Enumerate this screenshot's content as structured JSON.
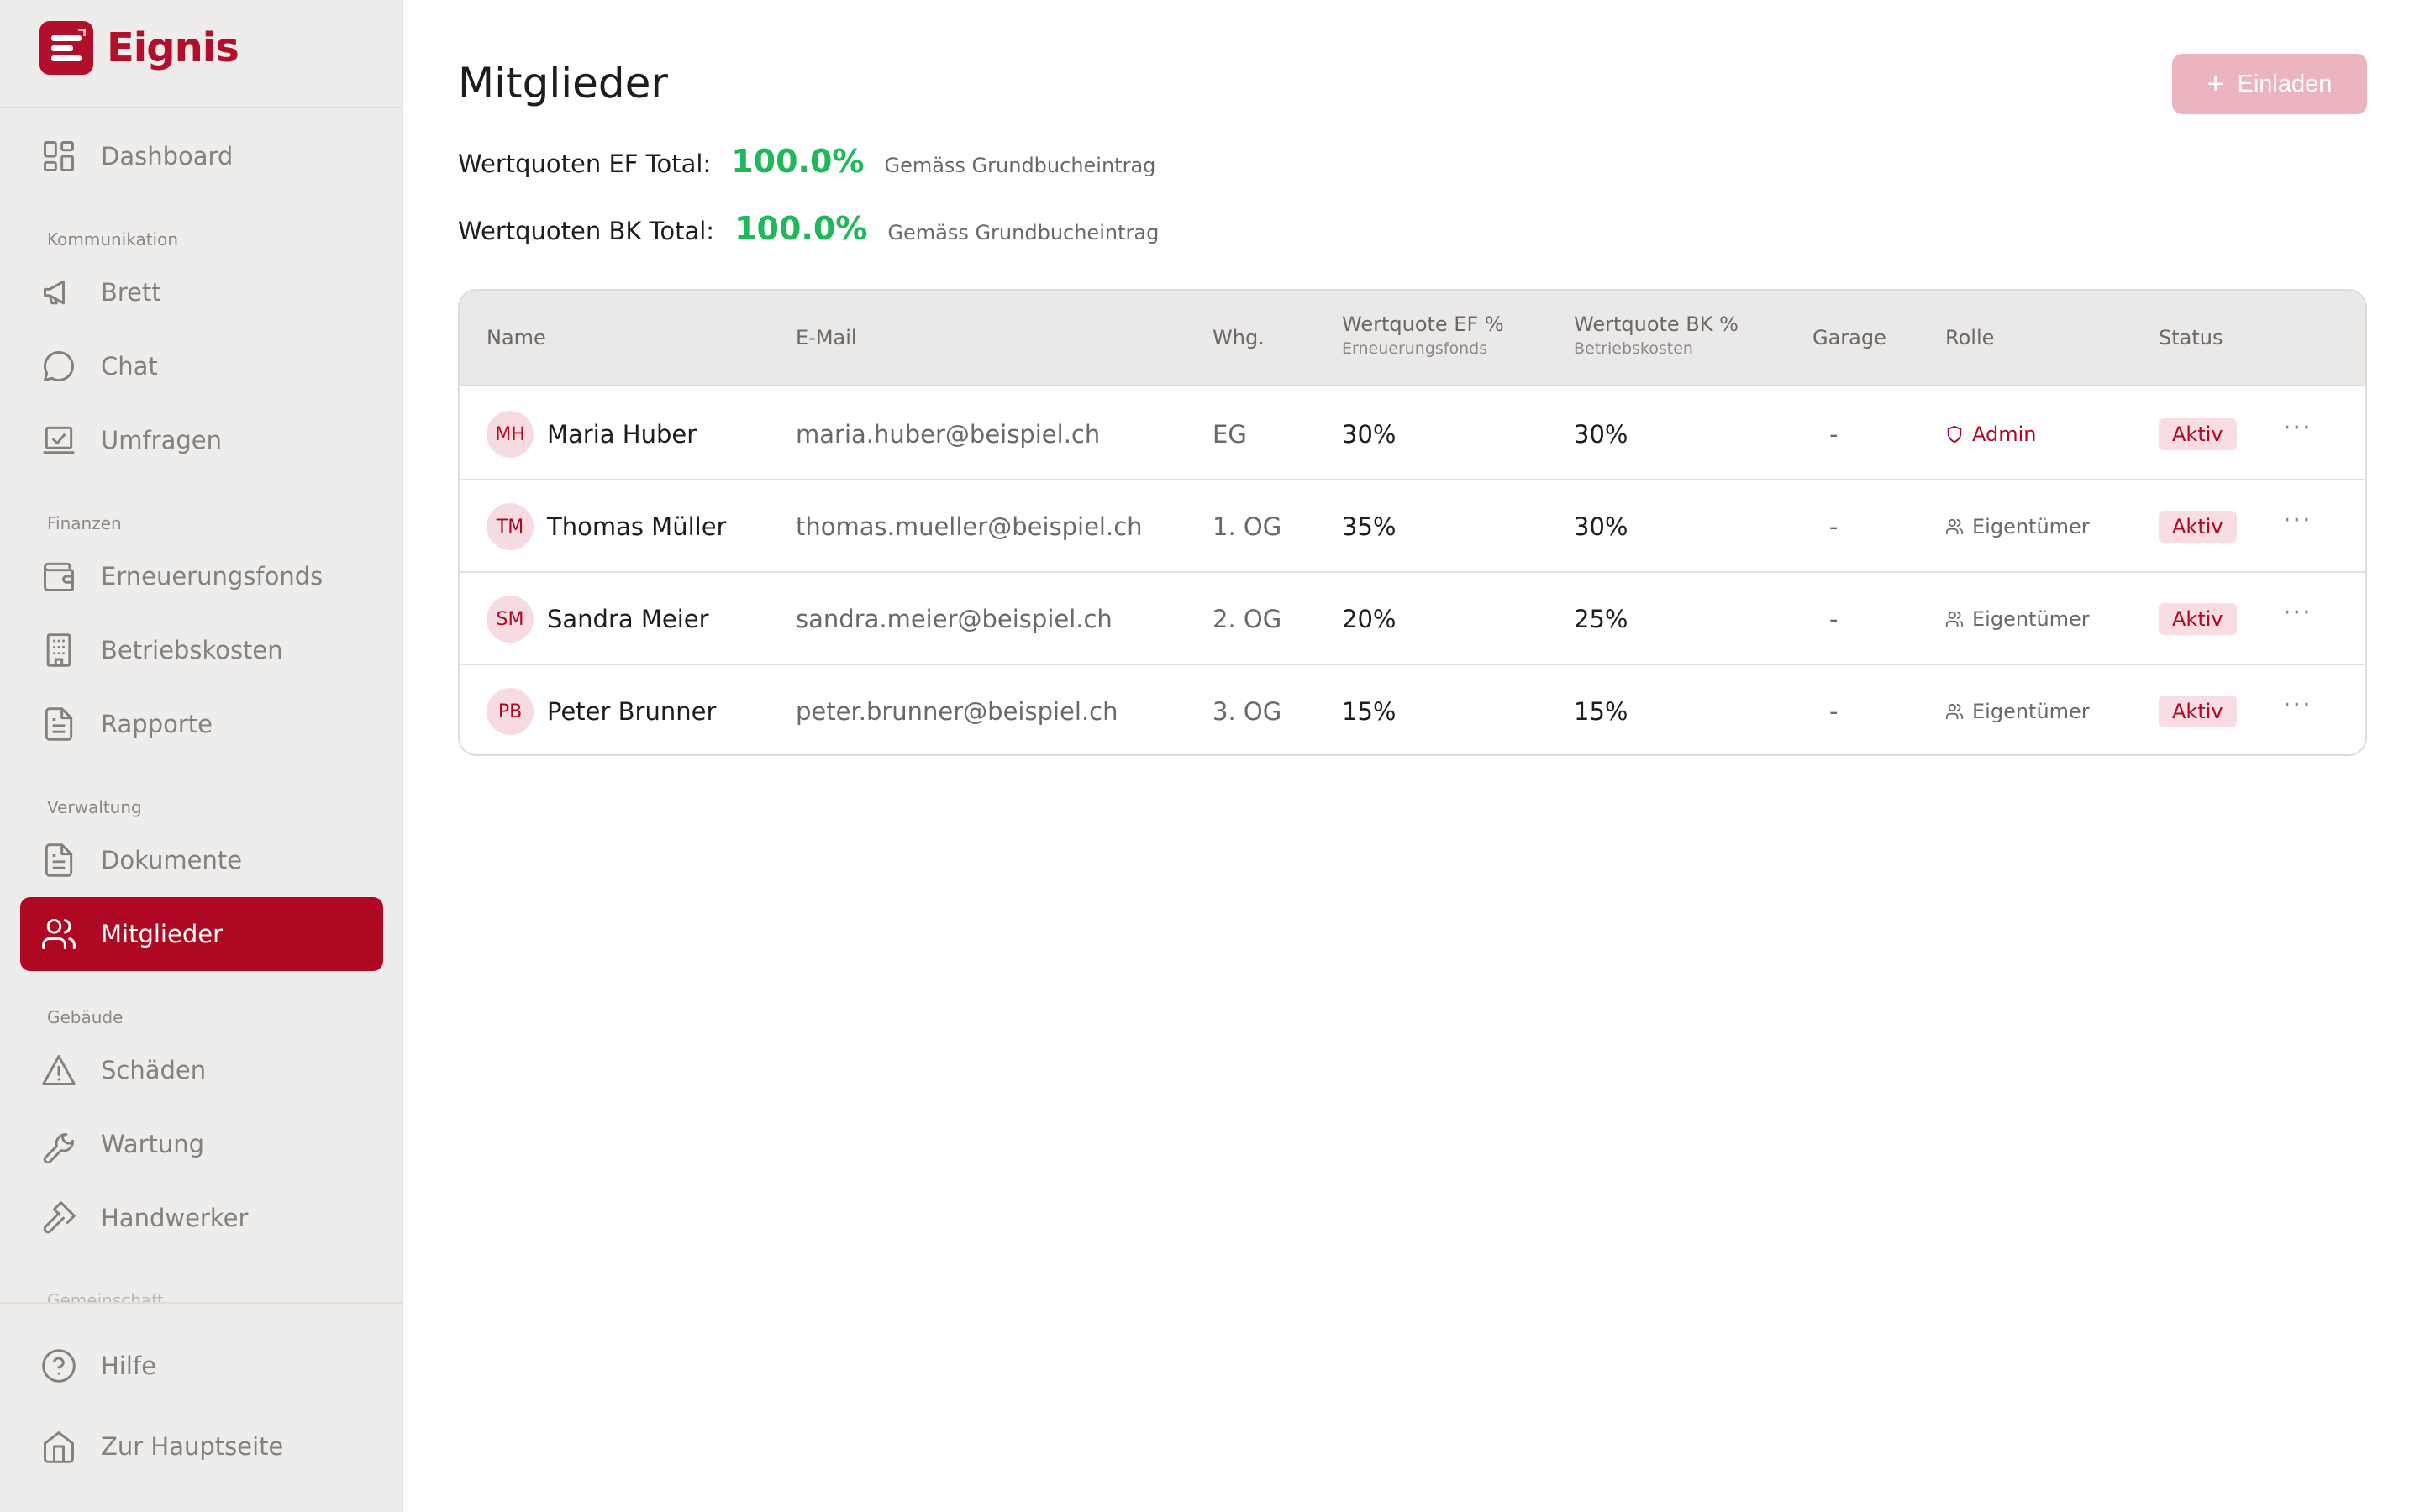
{
  "brand": {
    "name": "Eignis",
    "color": "#b2102a"
  },
  "sidebar": {
    "top_items": [
      {
        "label": "Dashboard",
        "icon": "dashboard-icon"
      }
    ],
    "sections": [
      {
        "title": "Kommunikation",
        "items": [
          {
            "label": "Brett",
            "icon": "megaphone-icon"
          },
          {
            "label": "Chat",
            "icon": "chat-bubble-icon"
          },
          {
            "label": "Umfragen",
            "icon": "poll-icon"
          }
        ]
      },
      {
        "title": "Finanzen",
        "items": [
          {
            "label": "Erneuerungsfonds",
            "icon": "wallet-icon"
          },
          {
            "label": "Betriebskosten",
            "icon": "building-icon"
          },
          {
            "label": "Rapporte",
            "icon": "report-icon"
          }
        ]
      },
      {
        "title": "Verwaltung",
        "items": [
          {
            "label": "Dokumente",
            "icon": "document-icon"
          },
          {
            "label": "Mitglieder",
            "icon": "users-icon",
            "active": true
          }
        ]
      },
      {
        "title": "Gebäude",
        "items": [
          {
            "label": "Schäden",
            "icon": "warning-icon"
          },
          {
            "label": "Wartung",
            "icon": "wrench-icon"
          },
          {
            "label": "Handwerker",
            "icon": "hammer-icon"
          }
        ]
      },
      {
        "title": "Gemeinschaft",
        "items": []
      }
    ],
    "bottom_items": [
      {
        "label": "Hilfe",
        "icon": "help-icon"
      },
      {
        "label": "Zur Hauptseite",
        "icon": "home-icon"
      }
    ]
  },
  "page": {
    "title": "Mitglieder",
    "invite_label": "Einladen",
    "quotas": [
      {
        "label": "Wertquoten EF Total:",
        "value": "100.0%",
        "note": "Gemäss Grundbucheintrag"
      },
      {
        "label": "Wertquoten BK Total:",
        "value": "100.0%",
        "note": "Gemäss Grundbucheintrag"
      }
    ]
  },
  "table": {
    "headers": {
      "name": "Name",
      "email": "E-Mail",
      "apt": "Whg.",
      "ef": "Wertquote EF %",
      "ef_sub": "Erneuerungsfonds",
      "bk": "Wertquote BK %",
      "bk_sub": "Betriebskosten",
      "garage": "Garage",
      "role": "Rolle",
      "status": "Status"
    },
    "rows": [
      {
        "initials": "MH",
        "name": "Maria Huber",
        "email": "maria.huber@beispiel.ch",
        "apt": "EG",
        "ef": "30%",
        "bk": "30%",
        "garage": "-",
        "role": "Admin",
        "status": "Aktiv",
        "more": "···"
      },
      {
        "initials": "TM",
        "name": "Thomas Müller",
        "email": "thomas.mueller@beispiel.ch",
        "apt": "1. OG",
        "ef": "35%",
        "bk": "30%",
        "garage": "-",
        "role": "Eigentümer",
        "status": "Aktiv",
        "more": "···"
      },
      {
        "initials": "SM",
        "name": "Sandra Meier",
        "email": "sandra.meier@beispiel.ch",
        "apt": "2. OG",
        "ef": "20%",
        "bk": "25%",
        "garage": "-",
        "role": "Eigentümer",
        "status": "Aktiv",
        "more": "···"
      },
      {
        "initials": "PB",
        "name": "Peter Brunner",
        "email": "peter.brunner@beispiel.ch",
        "apt": "3. OG",
        "ef": "15%",
        "bk": "15%",
        "garage": "-",
        "role": "Eigentümer",
        "status": "Aktiv",
        "more": "···"
      }
    ]
  },
  "colors": {
    "accent": "#ae0822",
    "success": "#20b85a",
    "sidebar_bg": "#efedec",
    "invite_bg": "#ebb4be"
  }
}
